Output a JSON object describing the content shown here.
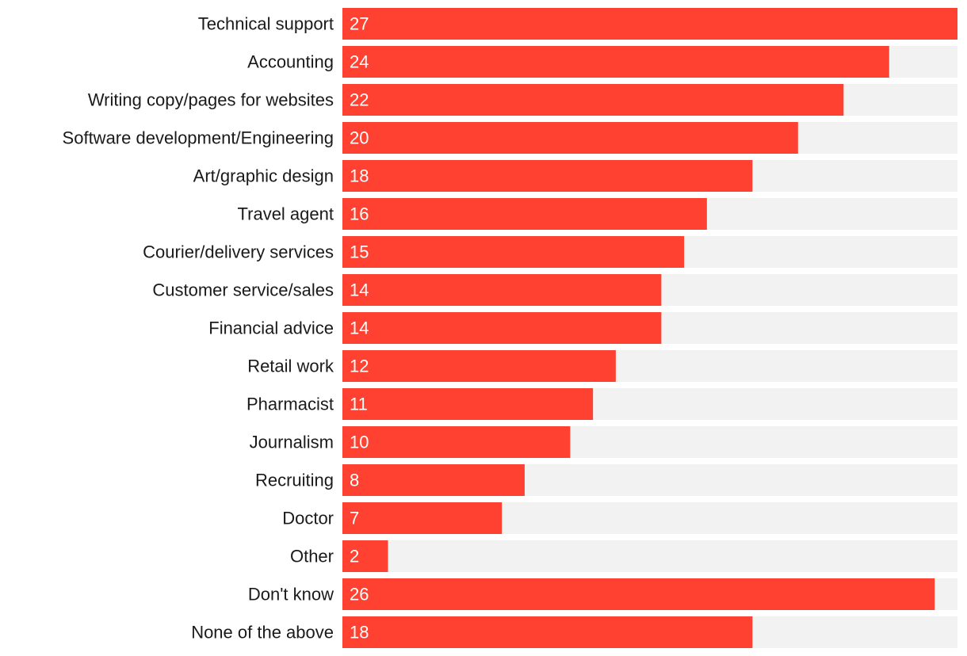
{
  "chart_data": {
    "type": "bar",
    "orientation": "horizontal",
    "title": "",
    "xlabel": "",
    "ylabel": "",
    "xlim": [
      0,
      27
    ],
    "grid": false,
    "legend": "none",
    "categories": [
      "Technical support",
      "Accounting",
      "Writing copy/pages for websites",
      "Software development/Engineering",
      "Art/graphic design",
      "Travel agent",
      "Courier/delivery services",
      "Customer service/sales",
      "Financial advice",
      "Retail work",
      "Pharmacist",
      "Journalism",
      "Recruiting",
      "Doctor",
      "Other",
      "Don't know",
      "None of the above"
    ],
    "values": [
      27,
      24,
      22,
      20,
      18,
      16,
      15,
      14,
      14,
      12,
      11,
      10,
      8,
      7,
      2,
      26,
      18
    ],
    "colors": {
      "bar": "#ff4131",
      "track": "#f2f2f2",
      "label_text": "#1a1a1a",
      "value_text": "#ffffff"
    }
  }
}
